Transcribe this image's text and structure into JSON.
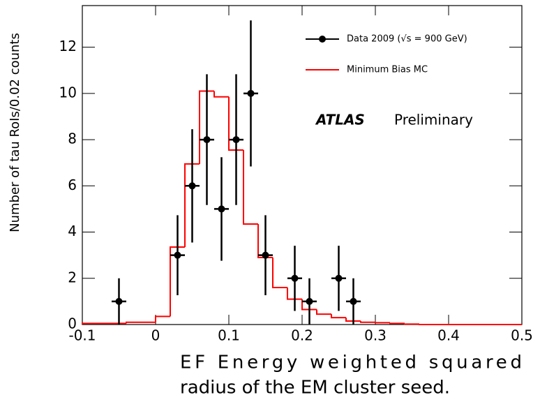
{
  "chart_data": {
    "type": "histogram",
    "x_label": [
      "EF Energy weighted squared",
      "radius of the EM cluster seed."
    ],
    "y_label": "Number of tau RoIs/0.02 counts",
    "annotations": [
      "ATLAS",
      "Preliminary"
    ],
    "xlim": [
      -0.1,
      0.5
    ],
    "ylim": [
      0,
      13.8
    ],
    "xticks": [
      -0.1,
      0,
      0.1,
      0.2,
      0.3,
      0.4,
      0.5
    ],
    "yticks": [
      0,
      2,
      4,
      6,
      8,
      10,
      12
    ],
    "bins": [
      -0.1,
      -0.08,
      -0.06,
      -0.04,
      -0.02,
      0,
      0.02,
      0.04,
      0.06,
      0.08,
      0.1,
      0.12,
      0.14,
      0.16,
      0.18,
      0.2,
      0.22,
      0.24,
      0.26,
      0.28,
      0.3,
      0.32,
      0.34,
      0.36,
      0.38,
      0.4,
      0.42,
      0.44,
      0.46,
      0.48,
      0.5
    ],
    "series": [
      {
        "name": "Minimum Bias MC",
        "color": "#ff0000",
        "values": [
          0.05,
          0.05,
          0.05,
          0.1,
          0.1,
          0.35,
          3.35,
          6.95,
          10.1,
          9.85,
          7.55,
          4.35,
          2.9,
          1.6,
          1.1,
          0.65,
          0.45,
          0.3,
          0.15,
          0.1,
          0.08,
          0.05,
          0.02,
          0,
          0,
          0,
          0,
          0,
          0,
          0
        ]
      }
    ],
    "points": {
      "name": "Data 2009 (√s = 900 GeV)",
      "color": "#000000",
      "x": [
        -0.05,
        0.03,
        0.05,
        0.07,
        0.09,
        0.11,
        0.13,
        0.15,
        0.19,
        0.21,
        0.25,
        0.27
      ],
      "values": [
        1,
        3,
        6,
        8,
        5,
        8,
        10,
        3,
        2,
        1,
        2,
        1
      ],
      "errors": [
        1,
        1.73,
        2.45,
        2.83,
        2.24,
        2.83,
        3.16,
        1.73,
        1.41,
        1,
        1.41,
        1
      ]
    }
  }
}
